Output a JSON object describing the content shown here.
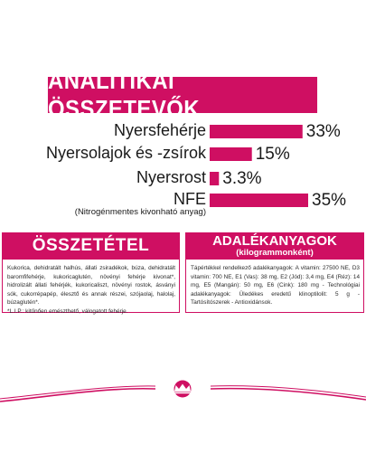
{
  "header": {
    "title": "ANALITIKAI ÖSSZETEVŐK"
  },
  "chart_data": {
    "type": "bar",
    "orientation": "horizontal",
    "categories": [
      "Nyersfehérje",
      "Nyersolajok és -zsírok",
      "Nyersrost",
      "NFE"
    ],
    "category_notes": [
      "",
      "",
      "",
      "(Nitrogénmentes kivonható anyag)"
    ],
    "values": [
      33,
      15,
      3.3,
      35
    ],
    "value_labels": [
      "33%",
      "15%",
      "3.3%",
      "35%"
    ],
    "xlim": [
      0,
      35
    ],
    "grid": false,
    "legend": "none",
    "bar_color": "#cf0f62"
  },
  "composition": {
    "title": "ÖSSZETÉTEL",
    "text": "Kukorica, dehidratált halhús, állati zsiradékok, búza, dehidratált baromfifehérje, kukoricaglutén, növényi fehérje kivonat*, hidrolizált állati fehérjék, kukoricaliszt, növényi rostok, ásványi sók, cukorrépapép, élesztő és annak részei, szójaolaj, halolaj, búzaglutén*.",
    "note": "*L.I.P.: kitűnően emészthető, válogatott fehérje."
  },
  "additives": {
    "title": "ADALÉKANYAGOK",
    "subtitle": "(kilogrammonként)",
    "text": "Tápértékkel rendelkező adalékanyagok: A vitamin: 27500 NE, D3 vitamin: 700 NE, E1 (Vas): 38 mg, E2 (Jód): 3,4 mg, E4 (Réz): 14 mg, E5 (Mangán): 50 mg, E6 (Cink): 180 mg - Technológiai adalékanyagok: Üledékes eredetű klinoptilolit: 5 g - Tartósítószerek - Antioxidánsok."
  },
  "colors": {
    "accent": "#cf0f62",
    "wave": "#cf0f62"
  },
  "logo": {
    "name": "royal-canin-crown-logo"
  }
}
